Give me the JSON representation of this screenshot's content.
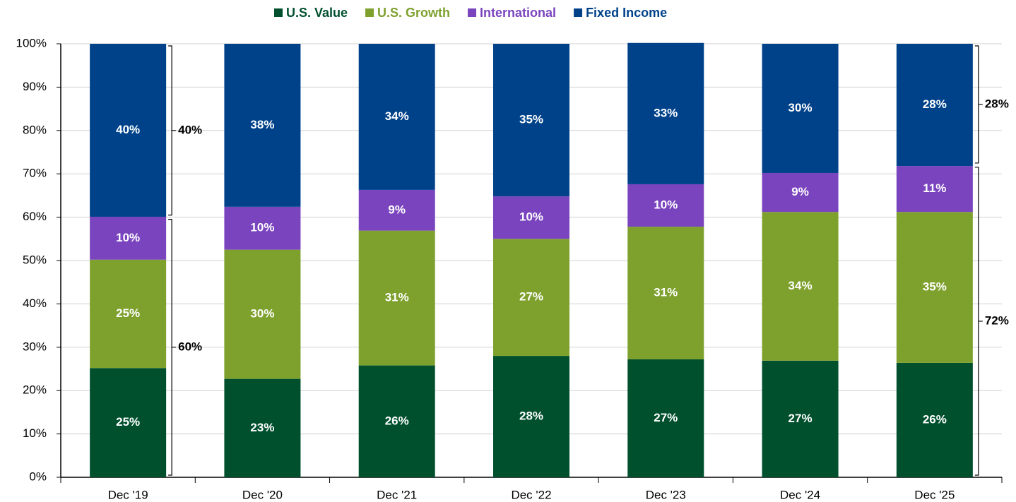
{
  "chart_data": {
    "type": "stacked_bar",
    "categories": [
      "Dec '19",
      "Dec '20",
      "Dec '21",
      "Dec '22",
      "Dec '23",
      "Dec '24",
      "Dec '25"
    ],
    "series": [
      {
        "name": "U.S. Value",
        "color": "#00502e",
        "values": [
          25.2,
          22.7,
          25.8,
          28.0,
          27.2,
          26.9,
          26.4
        ],
        "value_labels": [
          "25%",
          "23%",
          "26%",
          "28%",
          "27%",
          "27%",
          "26%"
        ]
      },
      {
        "name": "U.S. Growth",
        "color": "#7ea12e",
        "values": [
          25.0,
          29.8,
          31.1,
          27.0,
          30.6,
          34.3,
          34.8
        ],
        "value_labels": [
          "25%",
          "30%",
          "31%",
          "27%",
          "31%",
          "34%",
          "35%"
        ]
      },
      {
        "name": "International",
        "color": "#7a44be",
        "values": [
          9.9,
          9.9,
          9.4,
          9.8,
          9.8,
          9.0,
          10.6
        ],
        "value_labels": [
          "10%",
          "10%",
          "9%",
          "10%",
          "10%",
          "9%",
          "11%"
        ]
      },
      {
        "name": "Fixed Income",
        "color": "#00428a",
        "values": [
          39.9,
          37.6,
          33.7,
          35.2,
          32.6,
          29.8,
          28.2
        ],
        "value_labels": [
          "40%",
          "38%",
          "34%",
          "35%",
          "33%",
          "30%",
          "28%"
        ]
      }
    ],
    "annotations": [
      {
        "category": "Dec '19",
        "value": 40,
        "label": "40%"
      },
      {
        "category": "Dec '19",
        "value": 60,
        "label": "60%"
      },
      {
        "category": "Dec '25",
        "value": 28,
        "label": "28%"
      },
      {
        "category": "Dec '25",
        "value": 72,
        "label": "72%"
      }
    ],
    "ylim": [
      0,
      100
    ],
    "yticks": [
      {
        "value": 0,
        "label": "0%"
      },
      {
        "value": 10,
        "label": "10%"
      },
      {
        "value": 20,
        "label": "20%"
      },
      {
        "value": 30,
        "label": "30%"
      },
      {
        "value": 40,
        "label": "40%"
      },
      {
        "value": 50,
        "label": "50%"
      },
      {
        "value": 60,
        "label": "60%"
      },
      {
        "value": 70,
        "label": "70%"
      },
      {
        "value": 80,
        "label": "80%"
      },
      {
        "value": 90,
        "label": "90%"
      },
      {
        "value": 100,
        "label": "100%"
      }
    ],
    "grid": true,
    "legend": "top"
  }
}
